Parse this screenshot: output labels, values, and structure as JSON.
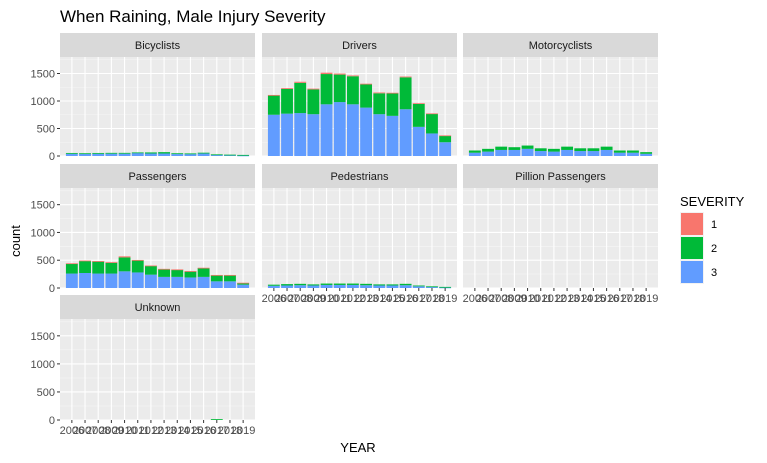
{
  "chart_data": {
    "type": "bar",
    "stacked": true,
    "faceted": true,
    "title": "When Raining, Male Injury Severity",
    "xlabel": "YEAR",
    "ylabel": "count",
    "ylim": [
      0,
      1800
    ],
    "y_ticks": [
      0,
      500,
      1000,
      1500
    ],
    "years": [
      2006,
      2007,
      2008,
      2009,
      2010,
      2011,
      2012,
      2013,
      2014,
      2015,
      2016,
      2017,
      2018,
      2019
    ],
    "x_tick_labels": [
      "2006",
      "2007",
      "2008",
      "2009",
      "2010",
      "2011",
      "2012",
      "2013",
      "2014",
      "2015",
      "2016",
      "2017",
      "2018",
      "2019"
    ],
    "legend": {
      "title": "SEVERITY",
      "position": "right",
      "items": [
        {
          "label": "1",
          "color": "#F8766D"
        },
        {
          "label": "2",
          "color": "#00BA38"
        },
        {
          "label": "3",
          "color": "#619CFF"
        }
      ]
    },
    "panels": [
      {
        "name": "Bicyclists",
        "sev1": [
          0,
          0,
          0,
          0,
          0,
          0,
          0,
          0,
          0,
          0,
          0,
          0,
          0,
          0
        ],
        "sev2": [
          15,
          12,
          15,
          15,
          15,
          10,
          20,
          25,
          15,
          12,
          15,
          5,
          10,
          10
        ],
        "sev3": [
          40,
          38,
          40,
          42,
          42,
          55,
          45,
          45,
          35,
          35,
          45,
          25,
          15,
          10
        ]
      },
      {
        "name": "Drivers",
        "sev1": [
          10,
          15,
          20,
          15,
          25,
          20,
          15,
          15,
          15,
          10,
          15,
          10,
          5,
          5
        ],
        "sev2": [
          350,
          450,
          550,
          450,
          550,
          500,
          510,
          420,
          380,
          410,
          580,
          420,
          360,
          120
        ],
        "sev3": [
          750,
          770,
          780,
          760,
          940,
          980,
          940,
          880,
          760,
          730,
          850,
          530,
          410,
          250
        ]
      },
      {
        "name": "Motorcyclists",
        "sev1": [
          0,
          0,
          0,
          0,
          0,
          0,
          0,
          0,
          0,
          0,
          0,
          0,
          0,
          0
        ],
        "sev2": [
          40,
          50,
          60,
          50,
          60,
          50,
          50,
          60,
          50,
          50,
          60,
          40,
          40,
          30
        ],
        "sev3": [
          60,
          80,
          110,
          110,
          130,
          90,
          80,
          110,
          90,
          90,
          110,
          60,
          60,
          40
        ]
      },
      {
        "name": "Passengers",
        "sev1": [
          5,
          5,
          5,
          5,
          20,
          5,
          5,
          5,
          5,
          5,
          5,
          5,
          5,
          5
        ],
        "sev2": [
          180,
          220,
          220,
          200,
          250,
          220,
          160,
          140,
          130,
          110,
          160,
          110,
          110,
          30
        ],
        "sev3": [
          260,
          270,
          260,
          260,
          300,
          280,
          240,
          200,
          200,
          190,
          200,
          120,
          120,
          60
        ]
      },
      {
        "name": "Pedestrians",
        "sev1": [
          0,
          0,
          0,
          0,
          0,
          0,
          0,
          0,
          0,
          0,
          0,
          0,
          0,
          0
        ],
        "sev2": [
          20,
          25,
          25,
          20,
          25,
          25,
          25,
          25,
          20,
          20,
          25,
          15,
          10,
          10
        ],
        "sev3": [
          40,
          45,
          50,
          45,
          55,
          55,
          55,
          50,
          45,
          45,
          50,
          30,
          20,
          10
        ]
      },
      {
        "name": "Pillion Passengers",
        "sev1": [
          0,
          0,
          0,
          0,
          0,
          0,
          0,
          0,
          0,
          0,
          0,
          0,
          0,
          0
        ],
        "sev2": [
          0,
          0,
          0,
          0,
          0,
          0,
          0,
          0,
          0,
          0,
          0,
          0,
          0,
          0
        ],
        "sev3": [
          0,
          0,
          0,
          0,
          0,
          0,
          0,
          0,
          0,
          0,
          0,
          0,
          0,
          0
        ]
      },
      {
        "name": "Unknown",
        "sev1": [
          0,
          0,
          0,
          0,
          0,
          0,
          0,
          0,
          0,
          0,
          0,
          0,
          0,
          0
        ],
        "sev2": [
          0,
          0,
          0,
          0,
          0,
          0,
          0,
          0,
          0,
          0,
          0,
          15,
          0,
          0
        ],
        "sev3": [
          0,
          0,
          0,
          0,
          0,
          0,
          0,
          0,
          0,
          0,
          0,
          0,
          0,
          0
        ]
      }
    ]
  }
}
